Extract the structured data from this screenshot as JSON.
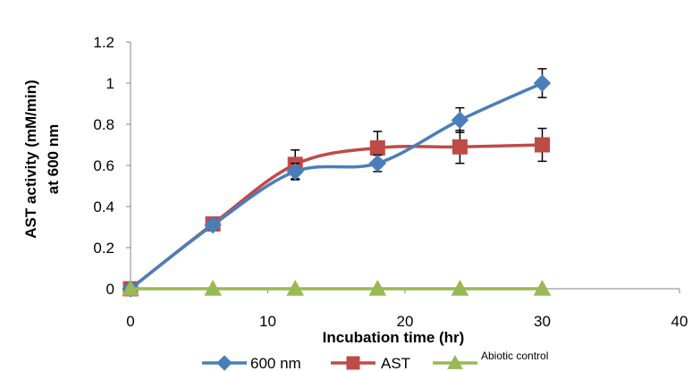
{
  "chart_data": {
    "type": "line",
    "xlabel": "Incubation time (hr)",
    "ylabel_line1": "AST activity (mM/min)",
    "ylabel_line2": "at 600 nm",
    "xlim": [
      0,
      40
    ],
    "ylim": [
      0,
      1.2
    ],
    "x_ticks": [
      "0",
      "10",
      "20",
      "30",
      "40"
    ],
    "y_ticks": [
      "0",
      "0.2",
      "0.4",
      "0.6",
      "0.8",
      "1",
      "1.2"
    ],
    "x_tick_values": [
      0,
      10,
      20,
      30,
      40
    ],
    "y_tick_values": [
      0,
      0.2,
      0.4,
      0.6,
      0.8,
      1.0,
      1.2
    ],
    "grid": false,
    "legend_position": "bottom",
    "series": [
      {
        "name": "600 nm",
        "color": "#4a7ebb",
        "marker": "diamond",
        "x": [
          0,
          6,
          12,
          18,
          24,
          30
        ],
        "y": [
          0,
          0.31,
          0.57,
          0.61,
          0.82,
          1.0
        ],
        "error": [
          0,
          0.02,
          0.04,
          0.04,
          0.06,
          0.07
        ]
      },
      {
        "name": "AST",
        "color": "#be4b48",
        "marker": "square",
        "x": [
          0,
          6,
          12,
          18,
          24,
          30
        ],
        "y": [
          0,
          0.315,
          0.605,
          0.685,
          0.69,
          0.7
        ],
        "error": [
          0,
          0.02,
          0.07,
          0.08,
          0.08,
          0.08
        ]
      },
      {
        "name": "Abiotic control",
        "color": "#98b954",
        "marker": "triangle",
        "x": [
          0,
          6,
          12,
          18,
          24,
          30
        ],
        "y": [
          0,
          0,
          0,
          0,
          0,
          0
        ],
        "error": [
          0,
          0,
          0,
          0,
          0,
          0
        ]
      }
    ]
  }
}
